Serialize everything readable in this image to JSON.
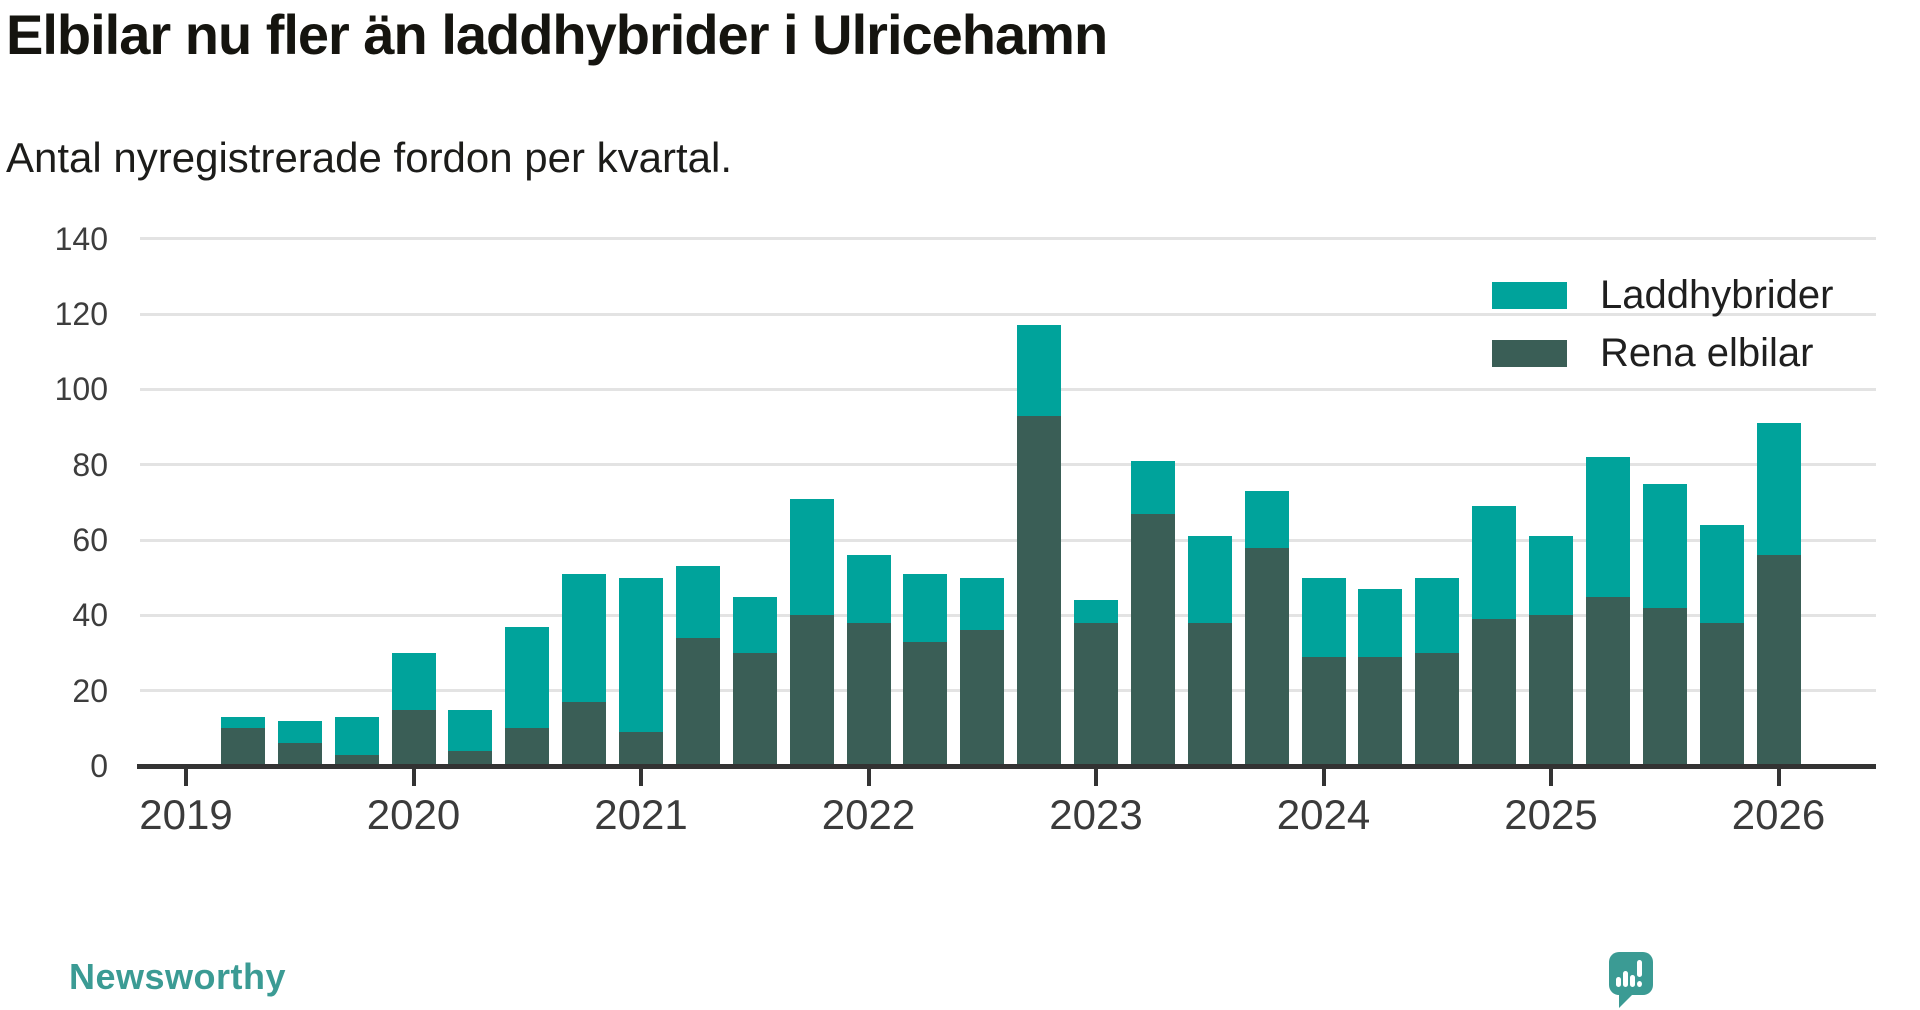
{
  "title": "Elbilar nu fler än laddhybrider i Ulricehamn",
  "subtitle": "Antal nyregistrerade fordon per kvartal.",
  "colors": {
    "laddhybrider": "#00A39B",
    "rena_elbilar": "#3A5E56",
    "axis_line": "#333333",
    "grid_line": "#e3e3e3",
    "axis_label": "#3b3b3b",
    "logo_teal": "#3B9B94"
  },
  "branding": {
    "logo_text": "Newsworthy",
    "logo_mark": "speech-bubble-with-bar-chart-and-exclamation"
  },
  "chart_data": {
    "type": "bar",
    "stacked": true,
    "title": "Elbilar nu fler än laddhybrider i Ulricehamn",
    "subtitle": "Antal nyregistrerade fordon per kvartal.",
    "grid": "horizontal",
    "legend_position": "top-right",
    "ylim": [
      0,
      140
    ],
    "yticks": [
      0,
      20,
      40,
      60,
      80,
      100,
      120,
      140
    ],
    "x_tick_labels": [
      "2019",
      "2020",
      "2021",
      "2022",
      "2023",
      "2024",
      "2025",
      "2026"
    ],
    "categories": [
      "2019 Q2",
      "2019 Q3",
      "2019 Q4",
      "2020 Q1",
      "2020 Q2",
      "2020 Q3",
      "2020 Q4",
      "2021 Q1",
      "2021 Q2",
      "2021 Q3",
      "2021 Q4",
      "2022 Q1",
      "2022 Q2",
      "2022 Q3",
      "2022 Q4",
      "2023 Q1",
      "2023 Q2",
      "2023 Q3",
      "2023 Q4",
      "2024 Q1",
      "2024 Q2",
      "2024 Q3",
      "2024 Q4",
      "2025 Q1",
      "2025 Q2",
      "2025 Q3",
      "2025 Q4",
      "2026 Q1"
    ],
    "series": [
      {
        "name": "Laddhybrider",
        "color": "#00A39B",
        "stack_order": "top",
        "values": [
          3,
          6,
          10,
          15,
          11,
          27,
          34,
          41,
          19,
          15,
          31,
          18,
          18,
          14,
          24,
          6,
          14,
          23,
          15,
          21,
          18,
          20,
          30,
          21,
          37,
          33,
          26,
          35
        ]
      },
      {
        "name": "Rena elbilar",
        "color": "#3A5E56",
        "stack_order": "bottom",
        "values": [
          10,
          6,
          3,
          15,
          4,
          10,
          17,
          9,
          34,
          30,
          40,
          38,
          33,
          36,
          93,
          38,
          67,
          38,
          58,
          29,
          29,
          30,
          39,
          40,
          45,
          42,
          38,
          56
        ]
      }
    ]
  }
}
